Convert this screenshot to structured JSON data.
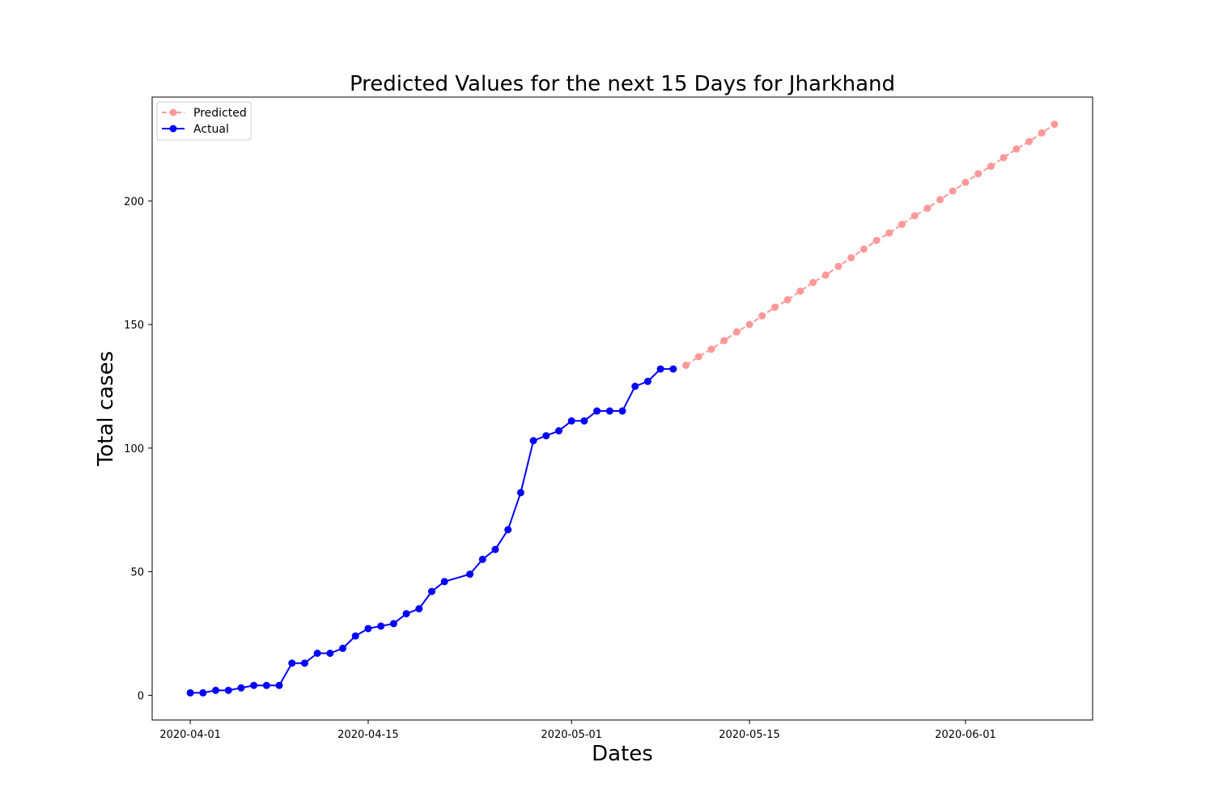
{
  "chart_data": {
    "type": "line",
    "title": "Predicted Values for the next 15 Days for Jharkhand",
    "xlabel": "Dates",
    "ylabel": "Total cases",
    "x_ticks": [
      "2020-04-01",
      "2020-04-15",
      "2020-05-01",
      "2020-05-15",
      "2020-06-01"
    ],
    "y_ticks": [
      0,
      50,
      100,
      150,
      200
    ],
    "ylim": [
      -10,
      242
    ],
    "xlim": [
      "2020-03-29",
      "2020-06-11"
    ],
    "grid": false,
    "legend": "top-left",
    "series": [
      {
        "name": "Predicted",
        "color": "#ff9999",
        "style": "dashed",
        "x": [
          "2020-05-10",
          "2020-05-11",
          "2020-05-12",
          "2020-05-13",
          "2020-05-14",
          "2020-05-15",
          "2020-05-16",
          "2020-05-17",
          "2020-05-18",
          "2020-05-19",
          "2020-05-20",
          "2020-05-21",
          "2020-05-22",
          "2020-05-23",
          "2020-05-24",
          "2020-05-25",
          "2020-05-26",
          "2020-05-27",
          "2020-05-28",
          "2020-05-29",
          "2020-05-30",
          "2020-05-31",
          "2020-06-01",
          "2020-06-02",
          "2020-06-03",
          "2020-06-04",
          "2020-06-05",
          "2020-06-06",
          "2020-06-07",
          "2020-06-08"
        ],
        "y": [
          133.5,
          137,
          140,
          143.5,
          147,
          150,
          153.5,
          157,
          160,
          163.5,
          167,
          170,
          173.5,
          177,
          180.5,
          184,
          187,
          190.5,
          194,
          197,
          200.5,
          204,
          207.5,
          211,
          214,
          217.5,
          221,
          224,
          227.5,
          231
        ]
      },
      {
        "name": "Actual",
        "color": "#0000ff",
        "style": "solid",
        "x": [
          "2020-04-01",
          "2020-04-02",
          "2020-04-03",
          "2020-04-04",
          "2020-04-05",
          "2020-04-06",
          "2020-04-07",
          "2020-04-08",
          "2020-04-09",
          "2020-04-10",
          "2020-04-11",
          "2020-04-12",
          "2020-04-13",
          "2020-04-14",
          "2020-04-15",
          "2020-04-16",
          "2020-04-17",
          "2020-04-18",
          "2020-04-19",
          "2020-04-20",
          "2020-04-21",
          "2020-04-23",
          "2020-04-24",
          "2020-04-25",
          "2020-04-26",
          "2020-04-27",
          "2020-04-28",
          "2020-04-29",
          "2020-04-30",
          "2020-05-01",
          "2020-05-02",
          "2020-05-03",
          "2020-05-04",
          "2020-05-05",
          "2020-05-06",
          "2020-05-07",
          "2020-05-08",
          "2020-05-09"
        ],
        "y": [
          1,
          1,
          2,
          2,
          3,
          4,
          4,
          4,
          13,
          13,
          17,
          17,
          19,
          24,
          27,
          28,
          29,
          33,
          35,
          42,
          46,
          49,
          55,
          59,
          67,
          82,
          103,
          105,
          107,
          111,
          111,
          115,
          115,
          115,
          125,
          127,
          132,
          132
        ]
      }
    ]
  }
}
